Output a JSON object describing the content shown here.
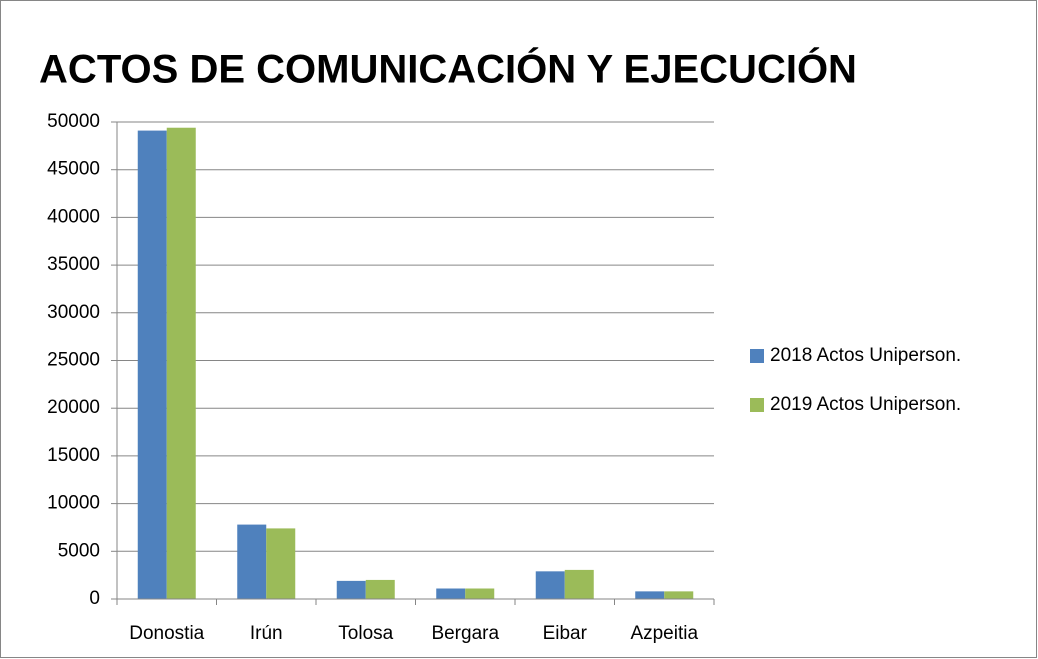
{
  "chart_data": {
    "type": "bar",
    "title": "ACTOS DE COMUNICACIÓN Y EJECUCIÓN",
    "categories": [
      "Donostia",
      "Irún",
      "Tolosa",
      "Bergara",
      "Eibar",
      "Azpeitia"
    ],
    "series": [
      {
        "name": "2018 Actos Uniperson.",
        "color": "#4f81bd",
        "values": [
          49100,
          7800,
          1900,
          1100,
          2900,
          800
        ]
      },
      {
        "name": "2019 Actos Uniperson.",
        "color": "#9bbb59",
        "values": [
          49400,
          7400,
          2000,
          1100,
          3050,
          800
        ]
      }
    ],
    "ylim": [
      0,
      50000
    ],
    "yticks": [
      0,
      5000,
      10000,
      15000,
      20000,
      25000,
      30000,
      35000,
      40000,
      45000,
      50000
    ],
    "grid": true,
    "legend": "right"
  }
}
